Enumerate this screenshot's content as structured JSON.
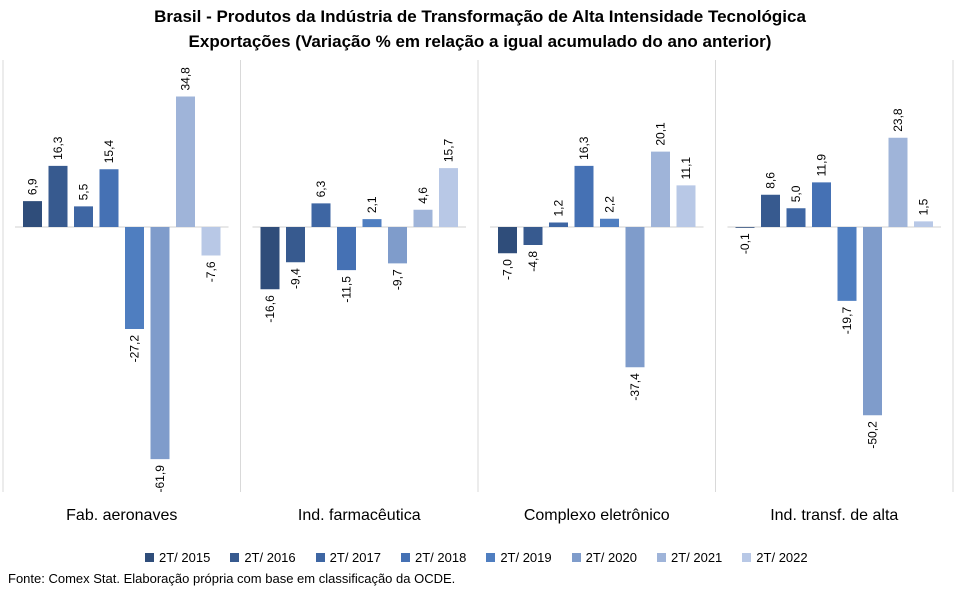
{
  "chart_data": {
    "type": "bar",
    "title": "Brasil - Produtos da Indústria de Transformação  de Alta Intensidade Tecnológica",
    "subtitle": "Exportações  (Variação % em relação a igual acumulado do ano anterior)",
    "categories": [
      "Fab. aeronaves",
      "Ind. farmacêutica",
      "Complexo eletrônico",
      "Ind. transf. de alta"
    ],
    "series": [
      {
        "name": "2T/ 2015",
        "color": "#2f4d7a",
        "values": [
          6.9,
          -16.6,
          -7.0,
          -0.1
        ],
        "labels": [
          "6,9",
          "-16,6",
          "-7,0",
          "-0,1"
        ]
      },
      {
        "name": "2T/ 2016",
        "color": "#375a8f",
        "values": [
          16.3,
          -9.4,
          -4.8,
          8.6
        ],
        "labels": [
          "16,3",
          "-9,4",
          "-4,8",
          "8,6"
        ]
      },
      {
        "name": "2T/ 2017",
        "color": "#3e66a3",
        "values": [
          5.5,
          6.3,
          1.2,
          5.0
        ],
        "labels": [
          "5,5",
          "6,3",
          "1,2",
          "5,0"
        ]
      },
      {
        "name": "2T/ 2018",
        "color": "#4571b4",
        "values": [
          15.4,
          -11.5,
          16.3,
          11.9
        ],
        "labels": [
          "15,4",
          "-11,5",
          "16,3",
          "11,9"
        ]
      },
      {
        "name": "2T/ 2019",
        "color": "#4f7ec0",
        "values": [
          -27.2,
          2.1,
          2.2,
          -19.7
        ],
        "labels": [
          "-27,2",
          "2,1",
          "2,2",
          "-19,7"
        ]
      },
      {
        "name": "2T/ 2020",
        "color": "#7f9ccb",
        "values": [
          -61.9,
          -9.7,
          -37.4,
          -50.2
        ],
        "labels": [
          "-61,9",
          "-9,7",
          "-37,4",
          "-50,2"
        ]
      },
      {
        "name": "2T/ 2021",
        "color": "#9fb4d9",
        "values": [
          34.8,
          4.6,
          20.1,
          23.8
        ],
        "labels": [
          "34,8",
          "4,6",
          "20,1",
          "23,8"
        ]
      },
      {
        "name": "2T/ 2022",
        "color": "#b8c8e6",
        "values": [
          -7.6,
          15.7,
          11.1,
          1.5
        ],
        "labels": [
          "-7,6",
          "15,7",
          "11,1",
          "1,5"
        ]
      }
    ],
    "legend_position": "bottom",
    "grid": false
  },
  "source_note": "Fonte: Comex Stat. Elaboração própria com base em classificação da OCDE."
}
